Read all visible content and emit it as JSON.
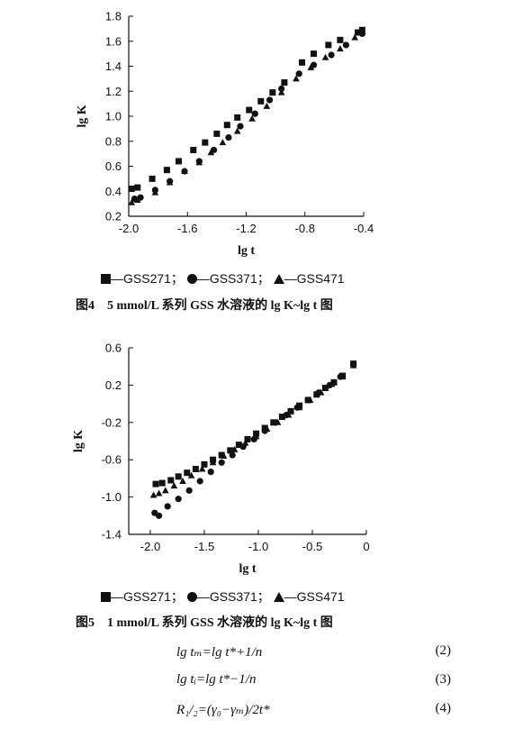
{
  "chart_data": [
    {
      "type": "scatter",
      "xlabel": "lg t",
      "ylabel": "lg K",
      "xlim": [
        -2.0,
        -0.4
      ],
      "ylim": [
        0.2,
        1.8
      ],
      "xticks": [
        "-2.0",
        "-1.6",
        "-1.2",
        "-0.8",
        "-0.4"
      ],
      "yticks": [
        "0.2",
        "0.4",
        "0.6",
        "0.8",
        "1.0",
        "1.2",
        "1.4",
        "1.6",
        "1.8"
      ],
      "series": [
        {
          "name": "GSS271",
          "marker": "square",
          "x": [
            -1.98,
            -1.94,
            -1.84,
            -1.74,
            -1.66,
            -1.56,
            -1.48,
            -1.4,
            -1.33,
            -1.26,
            -1.18,
            -1.1,
            -1.02,
            -0.94,
            -0.82,
            -0.74,
            -0.64,
            -0.56,
            -0.44,
            -0.41
          ],
          "y": [
            0.42,
            0.43,
            0.5,
            0.57,
            0.64,
            0.73,
            0.79,
            0.86,
            0.93,
            0.99,
            1.05,
            1.12,
            1.19,
            1.27,
            1.43,
            1.5,
            1.57,
            1.61,
            1.67,
            1.69
          ]
        },
        {
          "name": "GSS371",
          "marker": "circle",
          "x": [
            -1.96,
            -1.92,
            -1.82,
            -1.72,
            -1.62,
            -1.52,
            -1.42,
            -1.32,
            -1.24,
            -1.14,
            -1.04,
            -0.96,
            -0.84,
            -0.74,
            -0.62,
            -0.52,
            -0.41
          ],
          "y": [
            0.34,
            0.35,
            0.41,
            0.48,
            0.56,
            0.64,
            0.73,
            0.83,
            0.92,
            1.02,
            1.13,
            1.22,
            1.34,
            1.41,
            1.49,
            1.57,
            1.66
          ]
        },
        {
          "name": "GSS471",
          "marker": "triangle",
          "x": [
            -1.98,
            -1.94,
            -1.82,
            -1.72,
            -1.62,
            -1.52,
            -1.44,
            -1.36,
            -1.26,
            -1.16,
            -1.06,
            -0.96,
            -0.86,
            -0.76,
            -0.66,
            -0.56,
            -0.46,
            -0.41
          ],
          "y": [
            0.31,
            0.33,
            0.39,
            0.47,
            0.56,
            0.63,
            0.71,
            0.79,
            0.88,
            0.98,
            1.08,
            1.19,
            1.3,
            1.39,
            1.47,
            1.54,
            1.63,
            1.67
          ]
        }
      ]
    },
    {
      "type": "scatter",
      "xlabel": "lg t",
      "ylabel": "lg K",
      "xlim": [
        -2.2,
        0
      ],
      "ylim": [
        -1.4,
        0.6
      ],
      "xticks": [
        "-2.0",
        "-1.5",
        "-1.0",
        "-0.5",
        "0"
      ],
      "xtick_values": [
        -2.0,
        -1.5,
        -1.0,
        -0.5,
        0
      ],
      "yticks": [
        "0.6",
        "0.2",
        "-0.2",
        "-0.6",
        "-1.0",
        "-1.4"
      ],
      "ytick_values": [
        0.6,
        0.2,
        -0.2,
        -0.6,
        -1.0,
        -1.4
      ],
      "series": [
        {
          "name": "GSS271",
          "marker": "square",
          "x": [
            -1.95,
            -1.89,
            -1.81,
            -1.74,
            -1.66,
            -1.58,
            -1.5,
            -1.42,
            -1.34,
            -1.26,
            -1.18,
            -1.1,
            -1.02,
            -0.94,
            -0.86,
            -0.78,
            -0.7,
            -0.62,
            -0.54,
            -0.46,
            -0.38,
            -0.3,
            -0.22,
            -0.12
          ],
          "y": [
            -0.86,
            -0.85,
            -0.82,
            -0.78,
            -0.74,
            -0.7,
            -0.65,
            -0.6,
            -0.55,
            -0.5,
            -0.44,
            -0.38,
            -0.32,
            -0.26,
            -0.2,
            -0.14,
            -0.08,
            -0.02,
            0.04,
            0.1,
            0.17,
            0.23,
            0.3,
            0.43
          ]
        },
        {
          "name": "GSS371",
          "marker": "circle",
          "x": [
            -1.96,
            -1.92,
            -1.84,
            -1.74,
            -1.64,
            -1.54,
            -1.44,
            -1.34,
            -1.24,
            -1.14,
            -1.04,
            -0.94,
            -0.84,
            -0.74,
            -0.64,
            -0.54,
            -0.44,
            -0.34,
            -0.24,
            -0.12
          ],
          "y": [
            -1.17,
            -1.2,
            -1.1,
            -1.02,
            -0.93,
            -0.83,
            -0.73,
            -0.63,
            -0.55,
            -0.46,
            -0.38,
            -0.29,
            -0.2,
            -0.12,
            -0.04,
            0.04,
            0.12,
            0.2,
            0.29,
            0.42
          ]
        },
        {
          "name": "GSS471",
          "marker": "triangle",
          "x": [
            -1.97,
            -1.92,
            -1.86,
            -1.78,
            -1.7,
            -1.62,
            -1.52,
            -1.42,
            -1.32,
            -1.22,
            -1.12,
            -1.02,
            -0.92,
            -0.82,
            -0.72,
            -0.62,
            -0.52,
            -0.42,
            -0.32,
            -0.22,
            -0.12
          ],
          "y": [
            -0.98,
            -0.96,
            -0.93,
            -0.88,
            -0.83,
            -0.77,
            -0.7,
            -0.63,
            -0.56,
            -0.49,
            -0.42,
            -0.35,
            -0.27,
            -0.2,
            -0.12,
            -0.04,
            0.04,
            0.12,
            0.21,
            0.29,
            0.41
          ]
        }
      ]
    }
  ],
  "fig4": {
    "legend": [
      {
        "marker": "square",
        "text": "—GSS271；"
      },
      {
        "marker": "circle",
        "text": "—GSS371；"
      },
      {
        "marker": "triangle",
        "text": "—GSS471"
      }
    ],
    "caption": "图4 5 mmol/L 系列 GSS 水溶液的 lg K~lg t 图"
  },
  "fig5": {
    "legend": [
      {
        "marker": "square",
        "text": "—GSS271；"
      },
      {
        "marker": "circle",
        "text": "—GSS371；"
      },
      {
        "marker": "triangle",
        "text": "—GSS471"
      }
    ],
    "caption": "图5 1 mmol/L 系列 GSS 水溶液的 lg K~lg t 图"
  },
  "equations": [
    {
      "text": "lg tₘ=lg t*+1/n",
      "number": "(2)"
    },
    {
      "text": "lg tᵢ=lg t*−1/n",
      "number": "(3)"
    },
    {
      "text": "R₁/₂=(γ₀−γₘ)/2t*",
      "number": "(4)"
    }
  ]
}
